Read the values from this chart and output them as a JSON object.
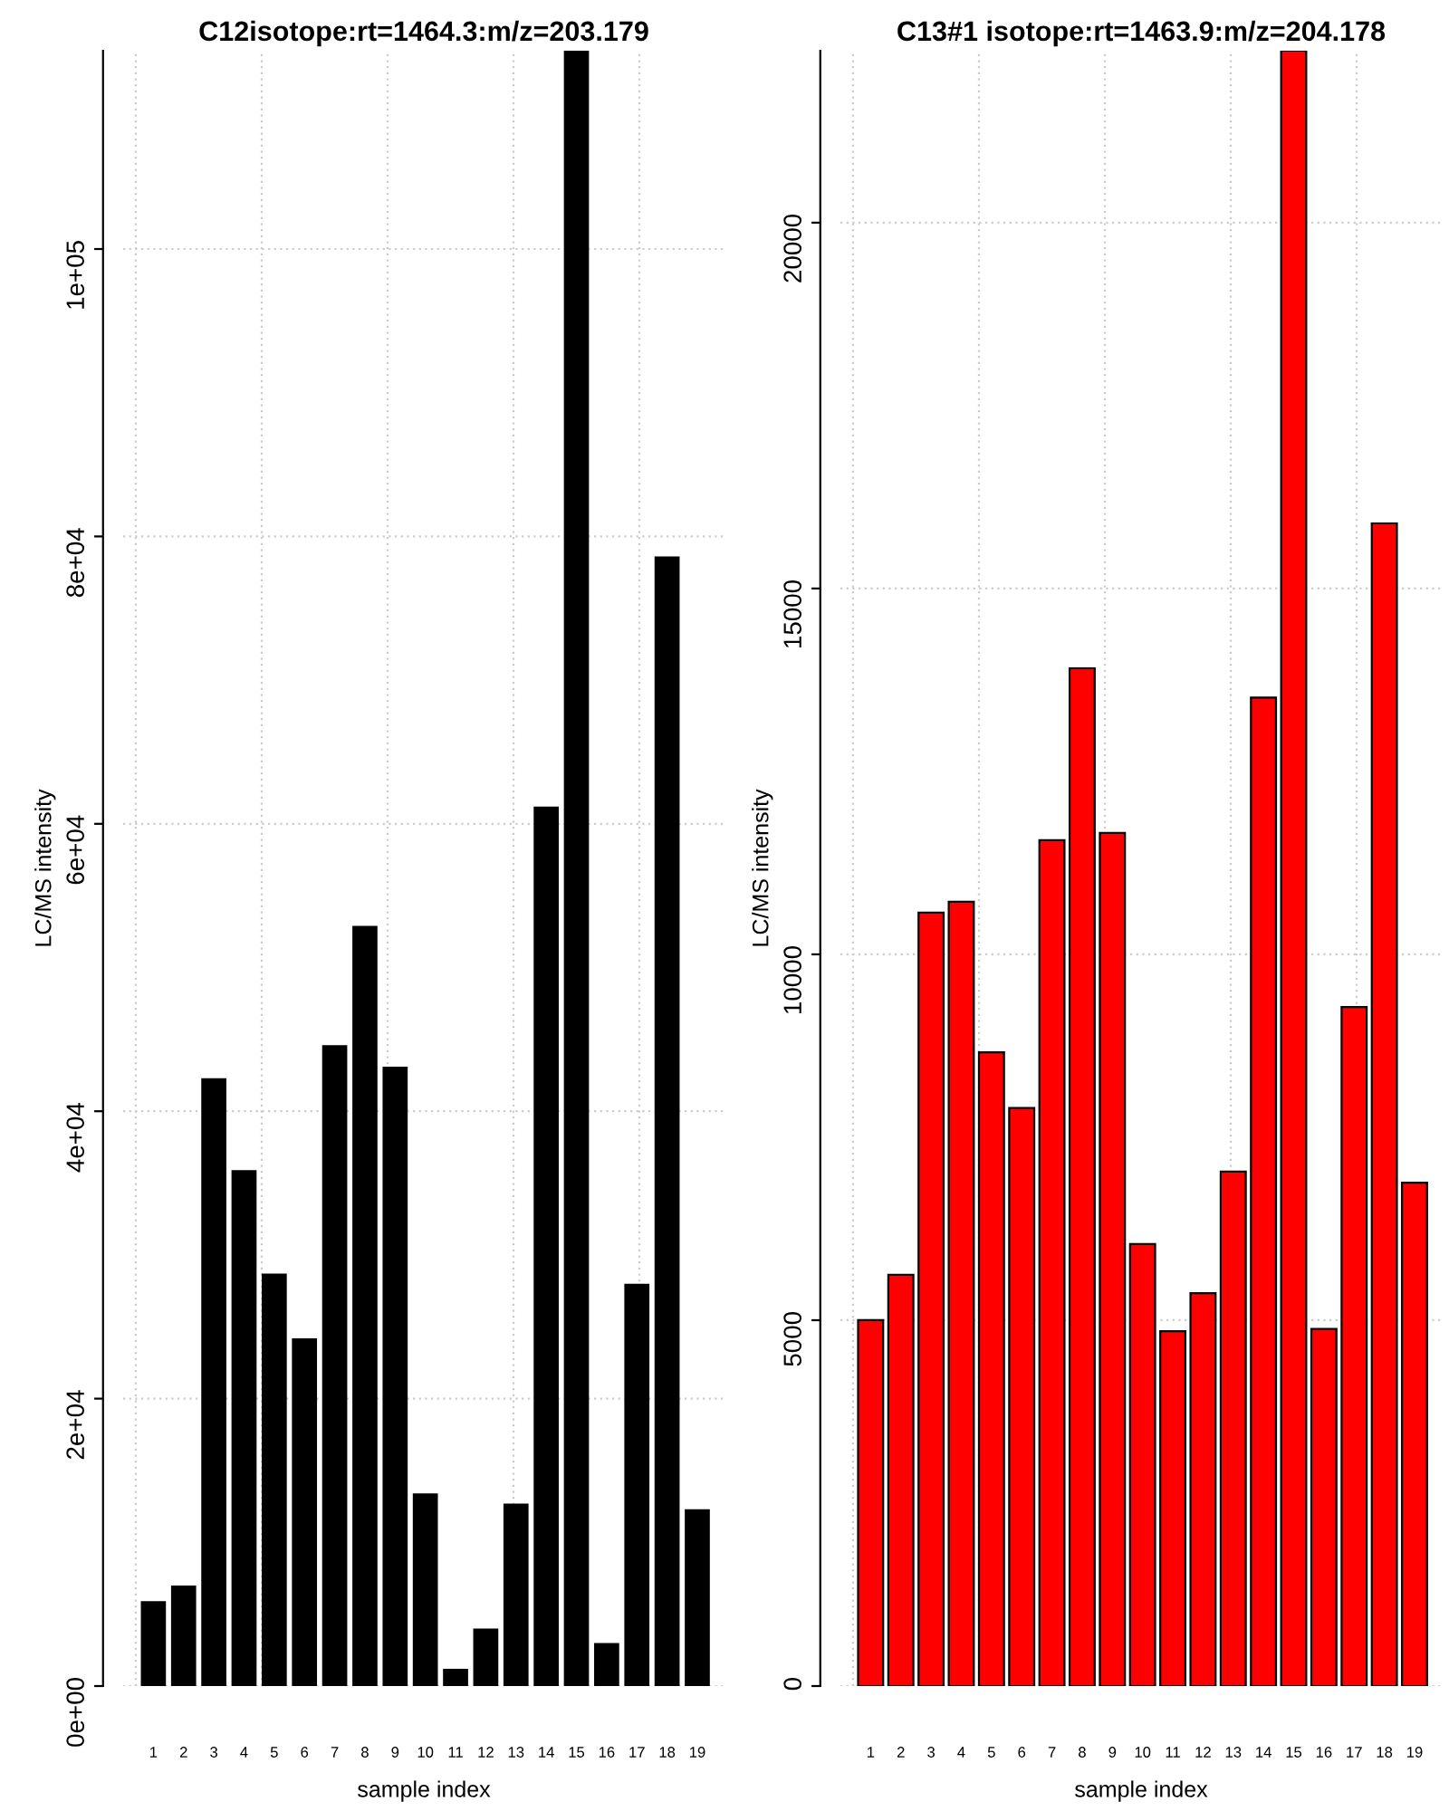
{
  "chart_data": [
    {
      "type": "bar",
      "title": "C12isotope:rt=1464.3:m/z=203.179",
      "xlabel": "sample index",
      "ylabel": "LC/MS intensity",
      "categories": [
        "1",
        "2",
        "3",
        "4",
        "5",
        "6",
        "7",
        "8",
        "9",
        "10",
        "11",
        "12",
        "13",
        "14",
        "15",
        "16",
        "17",
        "18",
        "19"
      ],
      "series": [
        {
          "color": "#000000",
          "values": [
            5900,
            7000,
            42300,
            35900,
            28700,
            24200,
            44600,
            52900,
            43100,
            13400,
            1200,
            4000,
            12700,
            61200,
            113800,
            3000,
            28000,
            78600,
            12300
          ]
        }
      ],
      "ylim": [
        0,
        113800
      ],
      "yticks": [
        {
          "value": 0,
          "label": "0e+00"
        },
        {
          "value": 20000,
          "label": "2e+04"
        },
        {
          "value": 40000,
          "label": "4e+04"
        },
        {
          "value": 60000,
          "label": "6e+04"
        },
        {
          "value": 80000,
          "label": "8e+04"
        },
        {
          "value": 100000,
          "label": "1e+05"
        }
      ],
      "grid": true
    },
    {
      "type": "bar",
      "title": "C13#1 isotope:rt=1463.9:m/z=204.178",
      "xlabel": "sample index",
      "ylabel": "LC/MS intensity",
      "categories": [
        "1",
        "2",
        "3",
        "4",
        "5",
        "6",
        "7",
        "8",
        "9",
        "10",
        "11",
        "12",
        "13",
        "14",
        "15",
        "16",
        "17",
        "18",
        "19"
      ],
      "series": [
        {
          "color": "#ff0000",
          "values": [
            5000,
            5620,
            10570,
            10720,
            8660,
            7900,
            11560,
            13910,
            11660,
            6040,
            4850,
            5370,
            7030,
            13510,
            22350,
            4880,
            9280,
            15890,
            6880
          ]
        }
      ],
      "ylim": [
        0,
        22350
      ],
      "yticks": [
        0,
        5000,
        10000,
        15000,
        20000
      ],
      "grid": true
    }
  ]
}
